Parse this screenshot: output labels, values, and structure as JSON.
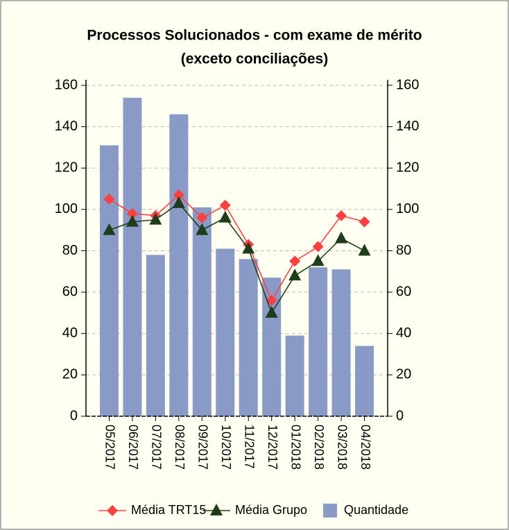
{
  "chart_data": {
    "type": "bar_line",
    "title": [
      "Processos Solucionados - com exame de mérito",
      "(exceto conciliações)"
    ],
    "categories": [
      "05/2017",
      "06/2017",
      "07/2017",
      "08/2017",
      "09/2017",
      "10/2017",
      "11/2017",
      "12/2017",
      "01/2018",
      "02/2018",
      "03/2018",
      "04/2018"
    ],
    "series": [
      {
        "name": "Média TRT15",
        "color": "#ff4040",
        "kind": "line",
        "marker": "diamond",
        "axis": "y2",
        "values": [
          105,
          98,
          97,
          107,
          96,
          102,
          83,
          56,
          75,
          82,
          97,
          94
        ]
      },
      {
        "name": "Média Grupo",
        "color": "#1e3d18",
        "kind": "line",
        "marker": "triangle",
        "axis": "y2",
        "values": [
          90,
          94,
          95,
          103,
          90,
          96,
          81,
          50,
          68,
          75,
          86,
          80
        ]
      },
      {
        "name": "Quantidade",
        "color": "#8a9ac6",
        "kind": "bar",
        "values": [
          131,
          154,
          78,
          146,
          101,
          81,
          76,
          67,
          39,
          72,
          71,
          34
        ]
      }
    ],
    "ylim": [
      0,
      160
    ],
    "yticks": [
      0,
      20,
      40,
      60,
      80,
      100,
      120,
      140,
      160
    ],
    "y2lim": [
      0,
      160
    ],
    "y2ticks": [
      0,
      20,
      40,
      60,
      80,
      100,
      120,
      140,
      160
    ],
    "grid": true,
    "legend": "bottom"
  }
}
